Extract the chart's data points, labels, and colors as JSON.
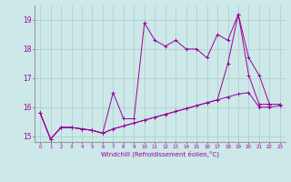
{
  "xlabel": "Windchill (Refroidissement éolien,°C)",
  "x": [
    0,
    1,
    2,
    3,
    4,
    5,
    6,
    7,
    8,
    9,
    10,
    11,
    12,
    13,
    14,
    15,
    16,
    17,
    18,
    19,
    20,
    21,
    22,
    23
  ],
  "line1": [
    15.8,
    14.9,
    15.3,
    15.3,
    15.25,
    15.2,
    15.1,
    15.25,
    15.35,
    15.45,
    15.55,
    15.65,
    15.75,
    15.85,
    15.95,
    16.05,
    16.15,
    16.25,
    16.35,
    16.45,
    16.5,
    16.0,
    16.0,
    16.05
  ],
  "line2": [
    15.8,
    14.9,
    15.3,
    15.3,
    15.25,
    15.2,
    15.1,
    16.5,
    15.6,
    15.6,
    18.9,
    18.3,
    18.1,
    18.3,
    18.0,
    18.0,
    17.7,
    18.5,
    18.3,
    19.2,
    17.7,
    17.1,
    16.1,
    16.1
  ],
  "line3": [
    15.8,
    14.9,
    15.3,
    15.3,
    15.25,
    15.2,
    15.1,
    15.25,
    15.35,
    15.45,
    15.55,
    15.65,
    15.75,
    15.85,
    15.95,
    16.05,
    16.15,
    16.25,
    17.5,
    19.2,
    17.1,
    16.1,
    16.1,
    16.1
  ],
  "line_color": "#990099",
  "bg_color": "#cce8e8",
  "grid_color": "#aacccc",
  "ylim": [
    14.8,
    19.5
  ],
  "xlim": [
    -0.5,
    23.5
  ],
  "yticks": [
    15,
    16,
    17,
    18,
    19
  ],
  "xticks": [
    0,
    1,
    2,
    3,
    4,
    5,
    6,
    7,
    8,
    9,
    10,
    11,
    12,
    13,
    14,
    15,
    16,
    17,
    18,
    19,
    20,
    21,
    22,
    23
  ]
}
